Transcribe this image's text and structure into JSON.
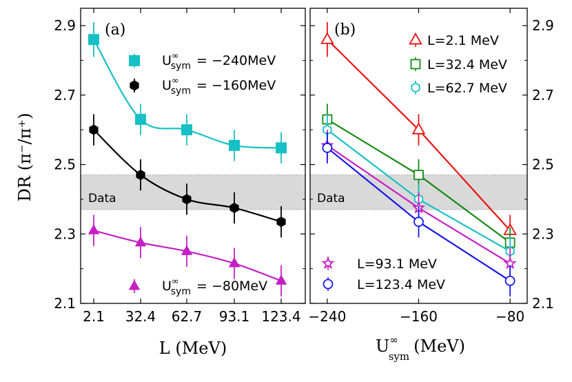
{
  "chart_data": [
    {
      "panel": "(a)",
      "type": "line",
      "xlabel": "L (MeV)",
      "ylabel": "DR",
      "ylabel_ratio": "(π⁻/π⁺)",
      "x_categories": [
        "2.1",
        "32.4",
        "62.7",
        "93.1",
        "123.4"
      ],
      "ylim": [
        2.1,
        2.95
      ],
      "yticks": [
        "2.1",
        "2.3",
        "2.5",
        "2.7",
        "2.9"
      ],
      "data_band": {
        "label": "Data",
        "range": [
          2.37,
          2.47
        ]
      },
      "series": [
        {
          "name": "U∞sym = −240MeV",
          "prefix": "U",
          "sup": "∞",
          "sub": "sym",
          "value_text": "= −240MeV",
          "color": "#16c0c4",
          "marker": "square",
          "values": [
            2.86,
            2.63,
            2.6,
            2.555,
            2.548
          ],
          "errors": [
            0.05,
            0.045,
            0.045,
            0.045,
            0.045
          ]
        },
        {
          "name": "U∞sym = −160MeV",
          "prefix": "U",
          "sup": "∞",
          "sub": "sym",
          "value_text": "= −160MeV",
          "color": "#000000",
          "marker": "hexagon",
          "values": [
            2.6,
            2.47,
            2.4,
            2.375,
            2.335
          ],
          "errors": [
            0.045,
            0.045,
            0.045,
            0.045,
            0.045
          ]
        },
        {
          "name": "U∞sym = −80MeV",
          "prefix": "U",
          "sup": "∞",
          "sub": "sym",
          "value_text": "= −80MeV",
          "color": "#c41fc4",
          "marker": "triangle",
          "values": [
            2.31,
            2.275,
            2.25,
            2.215,
            2.165
          ],
          "errors": [
            0.045,
            0.045,
            0.045,
            0.045,
            0.045
          ]
        }
      ]
    },
    {
      "panel": "(b)",
      "type": "line",
      "xlabel_main": "U",
      "xlabel_sup": "∞",
      "xlabel_sub": "sym",
      "xlabel_unit": "(MeV)",
      "x": [
        -240,
        -160,
        -80
      ],
      "xticks": [
        "−240",
        "−160",
        "−80"
      ],
      "ylim": [
        2.1,
        2.95
      ],
      "yticks": [
        "2.1",
        "2.3",
        "2.5",
        "2.7",
        "2.9"
      ],
      "data_band": {
        "label": "Data",
        "range": [
          2.37,
          2.47
        ]
      },
      "series": [
        {
          "name": "L=2.1 MeV",
          "color": "#ee1111",
          "marker": "triangle-open",
          "values": [
            2.86,
            2.6,
            2.31
          ],
          "errors": [
            0.05,
            0.045,
            0.045
          ]
        },
        {
          "name": "L=32.4 MeV",
          "color": "#158a15",
          "marker": "square-open",
          "values": [
            2.63,
            2.47,
            2.275
          ],
          "errors": [
            0.045,
            0.045,
            0.045
          ]
        },
        {
          "name": "L=62.7 MeV",
          "color": "#16c0c4",
          "marker": "hexagon-open",
          "values": [
            2.6,
            2.4,
            2.25
          ],
          "errors": [
            0.045,
            0.045,
            0.045
          ]
        },
        {
          "name": "L=93.1 MeV",
          "color": "#c41fc4",
          "marker": "star-open",
          "values": [
            2.555,
            2.375,
            2.215
          ],
          "errors": [
            0.045,
            0.045,
            0.045
          ]
        },
        {
          "name": "L=123.4 MeV",
          "color": "#1616ee",
          "marker": "circle-open",
          "values": [
            2.548,
            2.335,
            2.165
          ],
          "errors": [
            0.045,
            0.045,
            0.045
          ]
        }
      ]
    }
  ]
}
